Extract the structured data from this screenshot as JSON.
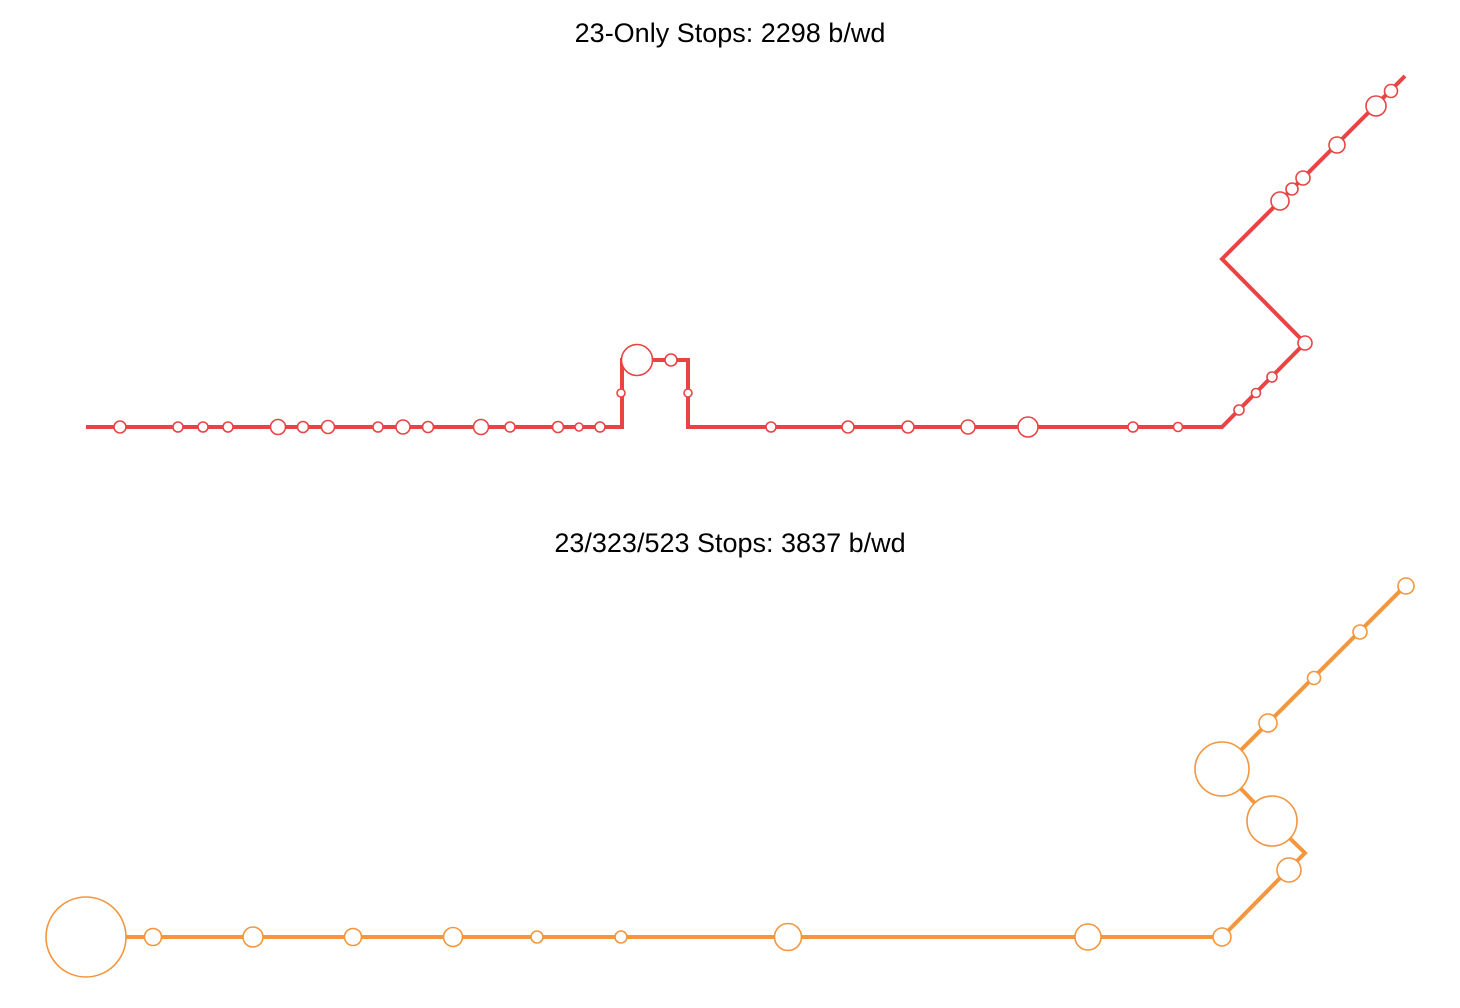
{
  "panels": [
    {
      "id": "top",
      "title": "23-Only Stops: 2298 b/wd",
      "color": "#e84443",
      "route_path": [
        [
          86,
          427
        ],
        [
          622,
          427
        ],
        [
          622,
          360
        ],
        [
          688,
          360
        ],
        [
          688,
          427
        ],
        [
          1222,
          427
        ],
        [
          1305,
          343
        ],
        [
          1222,
          259
        ],
        [
          1405,
          76
        ]
      ],
      "stop_sizes": [
        [
          120,
          427,
          6
        ],
        [
          178,
          427,
          5
        ],
        [
          203,
          427,
          5
        ],
        [
          228,
          427,
          5
        ],
        [
          278,
          427,
          7.5
        ],
        [
          303,
          427,
          5.5
        ],
        [
          328,
          427,
          6.5
        ],
        [
          378,
          427,
          5
        ],
        [
          403,
          427,
          7
        ],
        [
          428,
          427,
          5.5
        ],
        [
          481,
          427,
          7.5
        ],
        [
          510,
          427,
          5
        ],
        [
          558,
          427,
          5.5
        ],
        [
          579,
          427,
          4
        ],
        [
          600,
          427,
          5
        ],
        [
          621,
          393,
          4
        ],
        [
          637,
          360,
          15.5
        ],
        [
          671,
          360,
          6
        ],
        [
          688,
          393,
          4
        ],
        [
          771,
          427,
          5
        ],
        [
          848,
          427,
          6
        ],
        [
          908,
          427,
          6
        ],
        [
          968,
          427,
          7
        ],
        [
          1028,
          427,
          10
        ],
        [
          1133,
          427,
          5
        ],
        [
          1178,
          427,
          4.5
        ],
        [
          1239,
          410,
          5
        ],
        [
          1256,
          393,
          4.5
        ],
        [
          1272,
          377,
          5
        ],
        [
          1305,
          343,
          7
        ],
        [
          1280,
          201,
          9
        ],
        [
          1292,
          189,
          6
        ],
        [
          1303,
          178,
          7
        ],
        [
          1337,
          145,
          8
        ],
        [
          1376,
          106,
          10
        ],
        [
          1391,
          91,
          6.5
        ]
      ]
    },
    {
      "id": "bottom",
      "title": "23/323/523 Stops: 3837 b/wd",
      "color": "#f3963e",
      "route_path": [
        [
          86,
          427
        ],
        [
          1222,
          427
        ],
        [
          1288,
          360
        ],
        [
          1305,
          343
        ],
        [
          1271,
          310
        ],
        [
          1222,
          259
        ],
        [
          1405,
          76
        ]
      ],
      "stop_sizes": [
        [
          86,
          427,
          40
        ],
        [
          153,
          427,
          8.5
        ],
        [
          253,
          427,
          10
        ],
        [
          353,
          427,
          8.5
        ],
        [
          453,
          427,
          9.5
        ],
        [
          537,
          427,
          6
        ],
        [
          621,
          427,
          6
        ],
        [
          788,
          427,
          13.5
        ],
        [
          1088,
          427,
          13
        ],
        [
          1222,
          427,
          9
        ],
        [
          1289,
          360,
          12
        ],
        [
          1272,
          311,
          25
        ],
        [
          1222,
          259,
          27
        ],
        [
          1268,
          213,
          9
        ],
        [
          1314,
          168,
          6.5
        ],
        [
          1360,
          122,
          7
        ],
        [
          1406,
          76,
          8
        ]
      ]
    }
  ]
}
